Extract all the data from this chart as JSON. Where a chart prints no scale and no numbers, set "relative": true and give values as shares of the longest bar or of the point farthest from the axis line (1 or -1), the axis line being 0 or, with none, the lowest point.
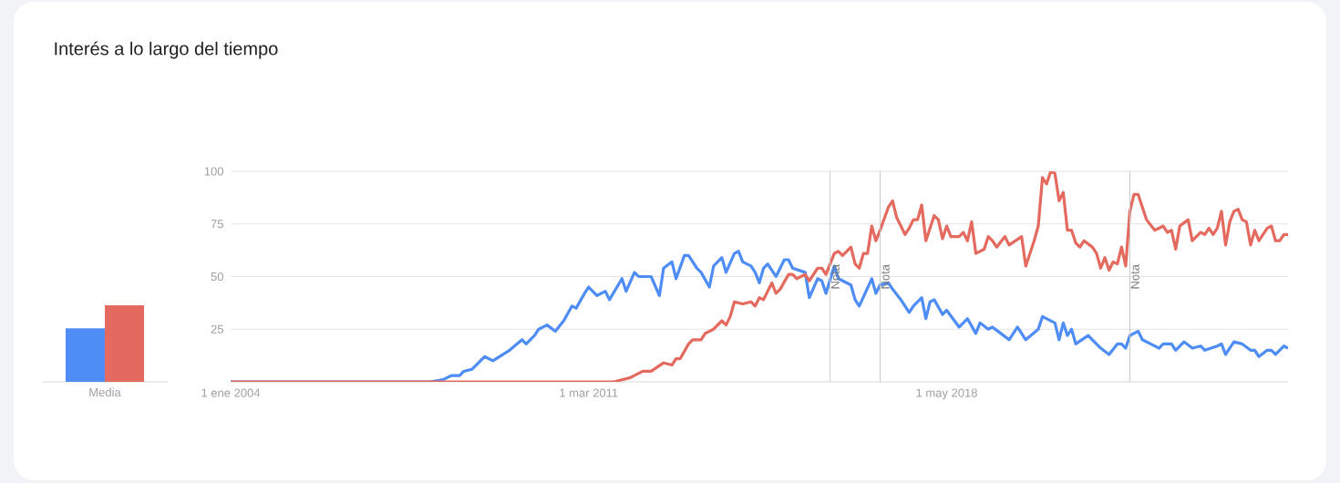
{
  "chart_data": [
    {
      "type": "bar",
      "categories": [
        "Media"
      ],
      "relative": true,
      "series": [
        {
          "color": "#4e8df5",
          "values": [
            0.7
          ]
        },
        {
          "color": "#e4695f",
          "values": [
            1
          ]
        }
      ]
    },
    {
      "type": "line",
      "title": "Interés a lo largo del tiempo",
      "xlim": [
        "2004-01",
        "2025-03"
      ],
      "xticks": [
        {
          "value": "2004-01",
          "label": "1 ene 2004"
        },
        {
          "value": "2011-03",
          "label": "1 mar 2011"
        },
        {
          "value": "2018-05",
          "label": "1 may 2018"
        }
      ],
      "ylim": [
        0,
        100
      ],
      "yticks": [
        25,
        50,
        75,
        100
      ],
      "grid": "y",
      "ref_lines": [
        {
          "axis": "x",
          "value": "2016-01",
          "label": "Nota",
          "color": "#c8c8c8"
        },
        {
          "axis": "x",
          "value": "2017-01",
          "label": "Nota",
          "color": "#c8c8c8"
        },
        {
          "axis": "x",
          "value": "2022-01",
          "label": "Nota",
          "color": "#c8c8c8"
        }
      ],
      "series": [
        {
          "color": "#4e8df5",
          "x": [
            "2004-01",
            "2008-01",
            "2008-04",
            "2008-06",
            "2008-08",
            "2008-09",
            "2008-11",
            "2009-02",
            "2009-04",
            "2009-08",
            "2009-11",
            "2009-12",
            "2010-02",
            "2010-03",
            "2010-05",
            "2010-07",
            "2010-09",
            "2010-11",
            "2010-12",
            "2011-02",
            "2011-03",
            "2011-05",
            "2011-07",
            "2011-08",
            "2011-11",
            "2011-12",
            "2012-02",
            "2012-03",
            "2012-06",
            "2012-08",
            "2012-09",
            "2012-11",
            "2012-12",
            "2013-02",
            "2013-03",
            "2013-05",
            "2013-06",
            "2013-08",
            "2013-09",
            "2013-11",
            "2013-12",
            "2014-02",
            "2014-03",
            "2014-04",
            "2014-06",
            "2014-07",
            "2014-08",
            "2014-09",
            "2014-10",
            "2014-12",
            "2015-02",
            "2015-03",
            "2015-04",
            "2015-07",
            "2015-08",
            "2015-10",
            "2015-11",
            "2015-12",
            "2016-02",
            "2016-03",
            "2016-06",
            "2016-07",
            "2016-08",
            "2016-11",
            "2016-12",
            "2017-01",
            "2017-03",
            "2017-04",
            "2017-06",
            "2017-08",
            "2017-09",
            "2017-11",
            "2017-12",
            "2018-01",
            "2018-02",
            "2018-04",
            "2018-05",
            "2018-08",
            "2018-10",
            "2018-12",
            "2019-01",
            "2019-03",
            "2019-04",
            "2019-06",
            "2019-08",
            "2019-10",
            "2019-12",
            "2020-03",
            "2020-04",
            "2020-07",
            "2020-08",
            "2020-09",
            "2020-10",
            "2020-11",
            "2020-12",
            "2021-03",
            "2021-04",
            "2021-06",
            "2021-08",
            "2021-10",
            "2021-11",
            "2021-12",
            "2022-01",
            "2022-03",
            "2022-04",
            "2022-06",
            "2022-08",
            "2022-09",
            "2022-11",
            "2022-12",
            "2023-02",
            "2023-04",
            "2023-06",
            "2023-07",
            "2023-10",
            "2023-11",
            "2023-12",
            "2024-02",
            "2024-04",
            "2024-06",
            "2024-07",
            "2024-08",
            "2024-10",
            "2024-11",
            "2024-12",
            "2025-02",
            "2025-03"
          ],
          "values": [
            0,
            0,
            1,
            3,
            3,
            5,
            6,
            12,
            10,
            15,
            20,
            18,
            22,
            25,
            27,
            24,
            29,
            36,
            35,
            42,
            45,
            41,
            43,
            39,
            49,
            43,
            52,
            50,
            50,
            41,
            54,
            57,
            49,
            60,
            60,
            54,
            52,
            45,
            55,
            59,
            52,
            61,
            62,
            57,
            55,
            52,
            47,
            54,
            56,
            50,
            58,
            58,
            54,
            52,
            40,
            49,
            48,
            42,
            55,
            49,
            46,
            39,
            36,
            49,
            42,
            46,
            47,
            44,
            39,
            33,
            36,
            40,
            30,
            38,
            39,
            32,
            34,
            26,
            30,
            23,
            28,
            25,
            26,
            23,
            20,
            26,
            20,
            25,
            31,
            28,
            20,
            28,
            22,
            25,
            18,
            22,
            20,
            16,
            13,
            18,
            18,
            16,
            22,
            24,
            20,
            18,
            16,
            18,
            18,
            15,
            19,
            16,
            17,
            15,
            17,
            18,
            13,
            19,
            18,
            15,
            15,
            12,
            15,
            15,
            13,
            17,
            16
          ]
        },
        {
          "color": "#e4695f",
          "x": [
            "2004-01",
            "2011-09",
            "2011-11",
            "2012-01",
            "2012-04",
            "2012-06",
            "2012-09",
            "2012-11",
            "2012-12",
            "2013-01",
            "2013-03",
            "2013-04",
            "2013-06",
            "2013-07",
            "2013-09",
            "2013-11",
            "2013-12",
            "2014-01",
            "2014-02",
            "2014-04",
            "2014-06",
            "2014-07",
            "2014-08",
            "2014-09",
            "2014-10",
            "2014-11",
            "2014-12",
            "2015-01",
            "2015-03",
            "2015-04",
            "2015-05",
            "2015-07",
            "2015-08",
            "2015-10",
            "2015-11",
            "2015-12",
            "2016-02",
            "2016-03",
            "2016-04",
            "2016-06",
            "2016-07",
            "2016-08",
            "2016-09",
            "2016-10",
            "2016-11",
            "2016-12",
            "2017-01",
            "2017-03",
            "2017-04",
            "2017-05",
            "2017-07",
            "2017-08",
            "2017-09",
            "2017-10",
            "2017-11",
            "2017-12",
            "2018-02",
            "2018-03",
            "2018-04",
            "2018-05",
            "2018-06",
            "2018-08",
            "2018-09",
            "2018-10",
            "2018-11",
            "2018-12",
            "2019-02",
            "2019-03",
            "2019-04",
            "2019-05",
            "2019-07",
            "2019-08",
            "2019-11",
            "2019-12",
            "2020-02",
            "2020-03",
            "2020-04",
            "2020-05",
            "2020-06",
            "2020-07",
            "2020-08",
            "2020-09",
            "2020-10",
            "2020-11",
            "2020-12",
            "2021-01",
            "2021-02",
            "2021-04",
            "2021-05",
            "2021-06",
            "2021-07",
            "2021-08",
            "2021-09",
            "2021-10",
            "2021-11",
            "2021-12",
            "2022-01",
            "2022-02",
            "2022-03",
            "2022-05",
            "2022-07",
            "2022-09",
            "2022-10",
            "2022-11",
            "2022-12",
            "2023-01",
            "2023-03",
            "2023-04",
            "2023-06",
            "2023-07",
            "2023-08",
            "2023-09",
            "2023-10",
            "2023-11",
            "2023-12",
            "2024-01",
            "2024-02",
            "2024-03",
            "2024-04",
            "2024-05",
            "2024-06",
            "2024-07",
            "2024-08",
            "2024-10",
            "2024-11",
            "2024-12",
            "2025-01",
            "2025-02",
            "2025-03"
          ],
          "values": [
            0,
            0,
            1,
            2,
            5,
            5,
            9,
            8,
            11,
            11,
            18,
            20,
            20,
            23,
            25,
            29,
            27,
            31,
            38,
            37,
            38,
            36,
            40,
            39,
            43,
            47,
            42,
            44,
            51,
            51,
            49,
            51,
            48,
            54,
            54,
            51,
            61,
            62,
            60,
            64,
            56,
            54,
            61,
            61,
            74,
            67,
            72,
            83,
            86,
            78,
            70,
            73,
            77,
            77,
            84,
            67,
            79,
            77,
            68,
            74,
            69,
            69,
            71,
            67,
            76,
            61,
            63,
            69,
            67,
            64,
            69,
            65,
            69,
            55,
            67,
            74,
            97,
            94,
            100,
            99,
            86,
            90,
            72,
            72,
            66,
            64,
            67,
            64,
            61,
            54,
            59,
            53,
            57,
            56,
            64,
            55,
            81,
            89,
            89,
            77,
            72,
            74,
            71,
            72,
            63,
            74,
            77,
            67,
            71,
            70,
            73,
            70,
            73,
            81,
            65,
            76,
            81,
            82,
            77,
            76,
            65,
            72,
            67,
            73,
            74,
            67,
            67,
            70,
            70
          ]
        }
      ]
    }
  ]
}
